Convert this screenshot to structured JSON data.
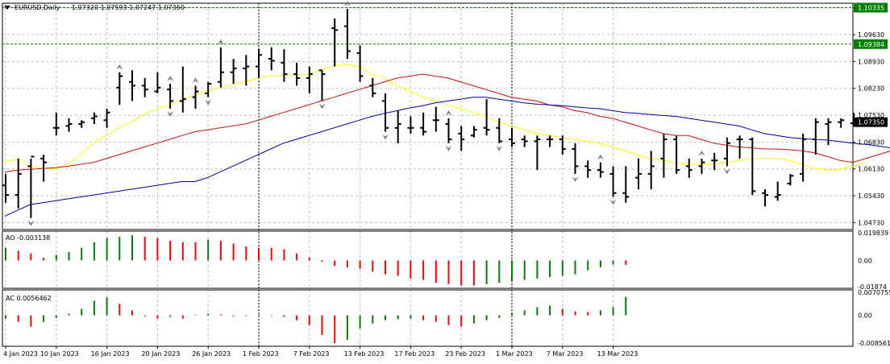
{
  "window": {
    "symbol": "EURUSD,Daily",
    "ohlc_readout": "1.07320 1.07593 1.07247 1.07350"
  },
  "colors": {
    "background": "#ffffff",
    "grid": "#c0c0c0",
    "bars": "#000000",
    "ma_yellow": "#ffff00",
    "ma_red": "#d01010",
    "ma_blue": "#0000a0",
    "indicator_up": "#008000",
    "indicator_down": "#ff0000",
    "price_label_bg": "#000000",
    "price_label_text": "#ffffff",
    "level_line": "#008000",
    "fractal_mark": "#808080"
  },
  "chart_data": [
    {
      "type": "ohlc",
      "name": "EURUSD,Daily",
      "axis_ticks": [
        "1.10335",
        "1.09630",
        "1.08930",
        "1.08230",
        "1.07530",
        "1.06830",
        "1.06130",
        "1.05430",
        "1.04730"
      ],
      "ylim": [
        1.0455,
        1.1045
      ],
      "current_price_label": "1.07350",
      "level_lines": [
        "1.10335",
        "1.09384"
      ],
      "x_labels": [
        "4 Jan 2023",
        "10 Jan 2023",
        "16 Jan 2023",
        "20 Jan 2023",
        "26 Jan 2023",
        "1 Feb 2023",
        "7 Feb 2023",
        "13 Feb 2023",
        "17 Feb 2023",
        "23 Feb 2023",
        "1 Mar 2023",
        "7 Mar 2023",
        "13 Mar 2023"
      ],
      "x_label_bars": [
        0,
        4,
        8,
        12,
        16,
        20,
        24,
        28,
        32,
        36,
        40,
        44,
        48
      ],
      "bars": [
        {
          "o": 1.057,
          "h": 1.06,
          "l": 1.0525,
          "c": 1.0545
        },
        {
          "o": 1.0545,
          "h": 1.064,
          "l": 1.051,
          "c": 1.06
        },
        {
          "o": 1.062,
          "h": 1.064,
          "l": 1.0485,
          "c": 1.0645
        },
        {
          "o": 1.064,
          "h": 1.065,
          "l": 1.058,
          "c": 1.063
        },
        {
          "o": 1.072,
          "h": 1.076,
          "l": 1.07,
          "c": 1.072
        },
        {
          "o": 1.0725,
          "h": 1.0745,
          "l": 1.071,
          "c": 1.073
        },
        {
          "o": 1.073,
          "h": 1.074,
          "l": 1.072,
          "c": 1.0735
        },
        {
          "o": 1.0745,
          "h": 1.076,
          "l": 1.073,
          "c": 1.075
        },
        {
          "o": 1.074,
          "h": 1.077,
          "l": 1.072,
          "c": 1.076
        },
        {
          "o": 1.0825,
          "h": 1.0865,
          "l": 1.078,
          "c": 1.0855
        },
        {
          "o": 1.084,
          "h": 1.087,
          "l": 1.079,
          "c": 1.083
        },
        {
          "o": 1.083,
          "h": 1.085,
          "l": 1.08,
          "c": 1.082
        },
        {
          "o": 1.0815,
          "h": 1.0865,
          "l": 1.081,
          "c": 1.0825
        },
        {
          "o": 1.082,
          "h": 1.0835,
          "l": 1.077,
          "c": 1.079
        },
        {
          "o": 1.079,
          "h": 1.088,
          "l": 1.076,
          "c": 1.0795
        },
        {
          "o": 1.08,
          "h": 1.083,
          "l": 1.077,
          "c": 1.0815
        },
        {
          "o": 1.081,
          "h": 1.084,
          "l": 1.08,
          "c": 1.0835
        },
        {
          "o": 1.084,
          "h": 1.093,
          "l": 1.0825,
          "c": 1.0865
        },
        {
          "o": 1.0865,
          "h": 1.09,
          "l": 1.0835,
          "c": 1.0875
        },
        {
          "o": 1.0875,
          "h": 1.091,
          "l": 1.083,
          "c": 1.088
        },
        {
          "o": 1.088,
          "h": 1.0925,
          "l": 1.085,
          "c": 1.091
        },
        {
          "o": 1.09,
          "h": 1.093,
          "l": 1.087,
          "c": 1.0895
        },
        {
          "o": 1.089,
          "h": 1.0925,
          "l": 1.084,
          "c": 1.086
        },
        {
          "o": 1.086,
          "h": 1.089,
          "l": 1.083,
          "c": 1.085
        },
        {
          "o": 1.085,
          "h": 1.088,
          "l": 1.081,
          "c": 1.086
        },
        {
          "o": 1.087,
          "h": 1.087,
          "l": 1.079,
          "c": 1.086
        },
        {
          "o": 1.098,
          "h": 1.1005,
          "l": 1.088,
          "c": 1.0975
        },
        {
          "o": 1.0985,
          "h": 1.103,
          "l": 1.09,
          "c": 1.092
        },
        {
          "o": 1.0915,
          "h": 1.0935,
          "l": 1.084,
          "c": 1.0855
        },
        {
          "o": 1.083,
          "h": 1.085,
          "l": 1.08,
          "c": 1.081
        },
        {
          "o": 1.079,
          "h": 1.081,
          "l": 1.071,
          "c": 1.072
        },
        {
          "o": 1.072,
          "h": 1.0765,
          "l": 1.068,
          "c": 1.073
        },
        {
          "o": 1.072,
          "h": 1.075,
          "l": 1.0705,
          "c": 1.072
        },
        {
          "o": 1.072,
          "h": 1.076,
          "l": 1.07,
          "c": 1.071
        },
        {
          "o": 1.074,
          "h": 1.0775,
          "l": 1.071,
          "c": 1.074
        },
        {
          "o": 1.073,
          "h": 1.0745,
          "l": 1.068,
          "c": 1.069
        },
        {
          "o": 1.0705,
          "h": 1.0725,
          "l": 1.066,
          "c": 1.069
        },
        {
          "o": 1.07,
          "h": 1.0725,
          "l": 1.0695,
          "c": 1.0715
        },
        {
          "o": 1.072,
          "h": 1.0795,
          "l": 1.07,
          "c": 1.0715
        },
        {
          "o": 1.072,
          "h": 1.0745,
          "l": 1.068,
          "c": 1.0685
        },
        {
          "o": 1.069,
          "h": 1.072,
          "l": 1.067,
          "c": 1.068
        },
        {
          "o": 1.069,
          "h": 1.07,
          "l": 1.067,
          "c": 1.0685
        },
        {
          "o": 1.0685,
          "h": 1.07,
          "l": 1.061,
          "c": 1.069
        },
        {
          "o": 1.069,
          "h": 1.07,
          "l": 1.067,
          "c": 1.069
        },
        {
          "o": 1.069,
          "h": 1.07,
          "l": 1.065,
          "c": 1.0665
        },
        {
          "o": 1.0665,
          "h": 1.068,
          "l": 1.06,
          "c": 1.062
        },
        {
          "o": 1.062,
          "h": 1.0635,
          "l": 1.059,
          "c": 1.061
        },
        {
          "o": 1.061,
          "h": 1.063,
          "l": 1.059,
          "c": 1.0605
        },
        {
          "o": 1.06,
          "h": 1.062,
          "l": 1.054,
          "c": 1.055
        },
        {
          "o": 1.055,
          "h": 1.062,
          "l": 1.0525,
          "c": 1.054
        },
        {
          "o": 1.059,
          "h": 1.064,
          "l": 1.056,
          "c": 1.06
        },
        {
          "o": 1.06,
          "h": 1.066,
          "l": 1.056,
          "c": 1.062
        },
        {
          "o": 1.064,
          "h": 1.0705,
          "l": 1.059,
          "c": 1.069
        },
        {
          "o": 1.069,
          "h": 1.07,
          "l": 1.06,
          "c": 1.061
        },
        {
          "o": 1.062,
          "h": 1.064,
          "l": 1.059,
          "c": 1.061
        },
        {
          "o": 1.062,
          "h": 1.064,
          "l": 1.06,
          "c": 1.063
        },
        {
          "o": 1.0635,
          "h": 1.0655,
          "l": 1.061,
          "c": 1.0635
        },
        {
          "o": 1.064,
          "h": 1.0695,
          "l": 1.062,
          "c": 1.068
        },
        {
          "o": 1.069,
          "h": 1.07,
          "l": 1.064,
          "c": 1.069
        },
        {
          "o": 1.069,
          "h": 1.0695,
          "l": 1.0545,
          "c": 1.0555
        },
        {
          "o": 1.055,
          "h": 1.056,
          "l": 1.0515,
          "c": 1.0545
        },
        {
          "o": 1.054,
          "h": 1.058,
          "l": 1.053,
          "c": 1.0545
        },
        {
          "o": 1.0575,
          "h": 1.06,
          "l": 1.057,
          "c": 1.0595
        },
        {
          "o": 1.06,
          "h": 1.0705,
          "l": 1.058,
          "c": 1.069
        },
        {
          "o": 1.069,
          "h": 1.0745,
          "l": 1.065,
          "c": 1.0735
        },
        {
          "o": 1.073,
          "h": 1.0745,
          "l": 1.0675,
          "c": 1.0735
        },
        {
          "o": 1.0735,
          "h": 1.0745,
          "l": 1.072,
          "c": 1.074
        },
        {
          "o": 1.0732,
          "h": 1.07593,
          "l": 1.07247,
          "c": 1.0735
        }
      ],
      "moving_averages": [
        {
          "color_key": "ma_yellow",
          "values": [
            1.0632,
            1.0638,
            1.062,
            1.0615,
            1.0612,
            1.0625,
            1.065,
            1.068,
            1.07,
            1.072,
            1.0735,
            1.0755,
            1.077,
            1.078,
            1.0795,
            1.0805,
            1.0815,
            1.0825,
            1.0832,
            1.084,
            1.085,
            1.0855,
            1.0858,
            1.0858,
            1.086,
            1.0872,
            1.0882,
            1.0885,
            1.088,
            1.086,
            1.085,
            1.083,
            1.0815,
            1.08,
            1.079,
            1.078,
            1.077,
            1.076,
            1.075,
            1.0735,
            1.0725,
            1.0715,
            1.0705,
            1.07,
            1.0695,
            1.069,
            1.0685,
            1.068,
            1.067,
            1.066,
            1.065,
            1.064,
            1.0635,
            1.063,
            1.0625,
            1.0625,
            1.0625,
            1.063,
            1.0635,
            1.064,
            1.064,
            1.064,
            1.0635,
            1.0625,
            1.0615,
            1.061,
            1.0612,
            1.062,
            1.063
          ]
        },
        {
          "color_key": "ma_red",
          "values": [
            1.0605,
            1.061,
            1.0612,
            1.0614,
            1.0616,
            1.062,
            1.0625,
            1.063,
            1.064,
            1.065,
            1.066,
            1.067,
            1.068,
            1.069,
            1.07,
            1.071,
            1.0715,
            1.072,
            1.0725,
            1.073,
            1.074,
            1.075,
            1.076,
            1.077,
            1.078,
            1.079,
            1.08,
            1.081,
            1.082,
            1.083,
            1.084,
            1.085,
            1.0855,
            1.086,
            1.0855,
            1.085,
            1.084,
            1.083,
            1.082,
            1.081,
            1.08,
            1.0795,
            1.079,
            1.078,
            1.0775,
            1.0765,
            1.076,
            1.075,
            1.0745,
            1.0735,
            1.0725,
            1.0715,
            1.0705,
            1.07,
            1.07,
            1.069,
            1.068,
            1.0675,
            1.067,
            1.0668,
            1.0665,
            1.0665,
            1.0663,
            1.066,
            1.0655,
            1.0645,
            1.0635,
            1.063,
            1.064,
            1.065,
            1.066
          ]
        },
        {
          "color_key": "ma_blue",
          "values": [
            1.049,
            1.0505,
            1.052,
            1.0525,
            1.053,
            1.0535,
            1.054,
            1.0545,
            1.055,
            1.0555,
            1.056,
            1.0565,
            1.057,
            1.0575,
            1.058,
            1.058,
            1.059,
            1.0605,
            1.062,
            1.0635,
            1.065,
            1.0665,
            1.068,
            1.069,
            1.07,
            1.071,
            1.072,
            1.073,
            1.074,
            1.075,
            1.0758,
            1.0765,
            1.0772,
            1.0778,
            1.0785,
            1.079,
            1.0795,
            1.08,
            1.08,
            1.0795,
            1.079,
            1.0785,
            1.0782,
            1.078,
            1.0778,
            1.0775,
            1.0772,
            1.077,
            1.0765,
            1.076,
            1.0758,
            1.0755,
            1.0752,
            1.075,
            1.0745,
            1.074,
            1.0735,
            1.073,
            1.0725,
            1.0715,
            1.0705,
            1.07,
            1.0695,
            1.0692,
            1.069,
            1.0688,
            1.0684,
            1.068,
            1.0677,
            1.0673,
            1.0668
          ]
        }
      ],
      "fractals_up_bars": [
        9,
        13,
        15,
        17,
        27,
        35,
        47,
        55
      ],
      "fractals_down_bars": [
        2,
        13,
        16,
        25,
        30,
        35,
        39,
        45,
        48,
        57
      ]
    },
    {
      "type": "bar",
      "name": "AO",
      "header": "AO -0.003138",
      "axis_ticks": [
        "0.019839",
        "0.00",
        "-0.01874"
      ],
      "ylim": [
        -0.02,
        0.021
      ],
      "values": [
        0.009,
        0.007,
        0.005,
        0.002,
        0.004,
        0.006,
        0.009,
        0.013,
        0.016,
        0.017,
        0.018,
        0.017,
        0.016,
        0.014,
        0.013,
        0.013,
        0.015,
        0.014,
        0.012,
        0.01,
        0.009,
        0.009,
        0.008,
        0.005,
        0.002,
        -0.001,
        -0.004,
        -0.005,
        -0.006,
        -0.008,
        -0.01,
        -0.011,
        -0.013,
        -0.014,
        -0.016,
        -0.017,
        -0.018,
        -0.018,
        -0.017,
        -0.016,
        -0.015,
        -0.014,
        -0.013,
        -0.012,
        -0.011,
        -0.01,
        -0.007,
        -0.005,
        -0.003,
        -0.003138
      ]
    },
    {
      "type": "bar",
      "name": "AC",
      "header": "AC 0.0056462",
      "axis_ticks": [
        "0.0070755",
        "0.00",
        "-0.0085610"
      ],
      "ylim": [
        -0.0095,
        0.0078
      ],
      "values": [
        -0.001,
        -0.002,
        -0.0035,
        -0.002,
        -0.0008,
        0.0005,
        0.002,
        0.0045,
        0.0055,
        0.0035,
        0.0015,
        -0.0003,
        -0.001,
        -0.0005,
        -0.001,
        0.0002,
        0.0005,
        0.0003,
        -0.0003,
        -0.0002,
        0.0002,
        -0.0002,
        -0.0005,
        -0.0015,
        -0.003,
        -0.006,
        -0.0085,
        -0.0075,
        -0.004,
        -0.0025,
        -0.0015,
        -0.0012,
        -0.001,
        -0.0015,
        -0.002,
        -0.003,
        -0.0035,
        -0.0025,
        -0.0015,
        -0.0008,
        0.0005,
        0.0015,
        0.0025,
        0.003,
        0.002,
        0.0012,
        0.001,
        0.0015,
        0.0025,
        0.0056462
      ]
    }
  ]
}
